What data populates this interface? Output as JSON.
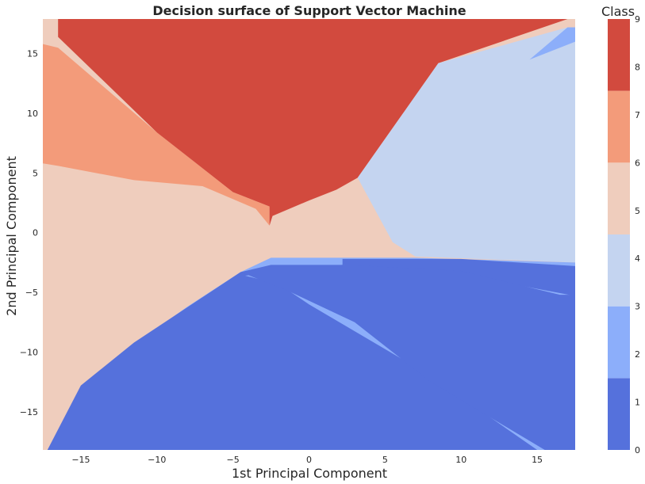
{
  "chart_data": {
    "type": "contour",
    "title": "Decision surface of Support Vector Machine",
    "xlabel": "1st Principal Component",
    "ylabel": "2nd Principal Component",
    "xlim": [
      -17.5,
      17.5
    ],
    "ylim": [
      -18.2,
      17.9
    ],
    "xticks": [
      -15,
      -10,
      -5,
      0,
      5,
      10,
      15
    ],
    "xtick_labels": [
      "−15",
      "−10",
      "−5",
      "0",
      "5",
      "10",
      "15"
    ],
    "yticks": [
      -15,
      -10,
      -5,
      0,
      5,
      10,
      15
    ],
    "ytick_labels": [
      "−15",
      "−10",
      "−5",
      "0",
      "5",
      "10",
      "15"
    ],
    "grid": false,
    "colorbar": {
      "title": "Class",
      "levels": [
        0,
        1,
        2,
        3,
        4,
        5,
        6,
        7,
        8,
        9
      ],
      "band_colors": [
        "#5571dc",
        "#8caefa",
        "#c4d4f0",
        "#efcdbd",
        "#f39b7a",
        "#d24a3e"
      ]
    },
    "regions": [
      {
        "class_band": 3,
        "color": "#efcdbd",
        "polygon": [
          [
            -17.5,
            17.9
          ],
          [
            17.5,
            17.9
          ],
          [
            17.5,
            -18.2
          ],
          [
            -17.5,
            -18.2
          ]
        ]
      },
      {
        "class_band": 4,
        "color": "#f39b7a",
        "polygon": [
          [
            -17.5,
            15.8
          ],
          [
            -16.5,
            15.5
          ],
          [
            -10,
            8.4
          ],
          [
            -5,
            3.4
          ],
          [
            -2.6,
            2.2
          ],
          [
            -2.6,
            0.6
          ],
          [
            -3.5,
            2.0
          ],
          [
            -7,
            3.9
          ],
          [
            -11.5,
            4.4
          ],
          [
            -16.5,
            5.6
          ],
          [
            -17.5,
            5.8
          ]
        ]
      },
      {
        "class_band": 5,
        "color": "#d24a3e",
        "polygon": [
          [
            -16.5,
            17.9
          ],
          [
            17.0,
            17.9
          ],
          [
            8.5,
            14.2
          ],
          [
            3.2,
            4.6
          ],
          [
            1.8,
            3.6
          ],
          [
            0,
            2.7
          ],
          [
            -2.4,
            1.4
          ],
          [
            -2.6,
            0.6
          ],
          [
            -2.6,
            2.2
          ],
          [
            -5,
            3.4
          ],
          [
            -10,
            8.4
          ],
          [
            -16.5,
            16.4
          ]
        ]
      },
      {
        "class_band": 2,
        "color": "#c4d4f0",
        "polygon": [
          [
            17.5,
            16.0
          ],
          [
            17.5,
            -2.5
          ],
          [
            7.0,
            -2.0
          ],
          [
            5.5,
            -0.8
          ],
          [
            3.2,
            4.6
          ],
          [
            8.5,
            14.2
          ],
          [
            17.0,
            17.2
          ]
        ]
      },
      {
        "class_band": 1,
        "color": "#8caefa",
        "polygon": [
          [
            17.5,
            17.2
          ],
          [
            17.5,
            16.0
          ],
          [
            14.5,
            14.5
          ],
          [
            17.0,
            17.2
          ]
        ]
      },
      {
        "class_band": 1,
        "color": "#8caefa",
        "polygon": [
          [
            17.5,
            -2.5
          ],
          [
            7.0,
            -2.1
          ],
          [
            -2.5,
            -2.1
          ],
          [
            -4.5,
            -3.3
          ],
          [
            -8,
            -6.2
          ],
          [
            -12,
            -9.8
          ],
          [
            -17.2,
            -18.2
          ],
          [
            17.5,
            -18.2
          ]
        ]
      },
      {
        "class_band": 0,
        "color": "#5571dc",
        "polygon": [
          [
            17.5,
            -2.8
          ],
          [
            10,
            -2.2
          ],
          [
            2.2,
            -2.2
          ],
          [
            2.2,
            -2.7
          ],
          [
            -4.5,
            -3.3
          ],
          [
            -11.5,
            -9.2
          ],
          [
            -15,
            -12.8
          ],
          [
            -17.2,
            -18.2
          ],
          [
            15,
            -18.2
          ],
          [
            8,
            -12
          ],
          [
            0,
            -6
          ],
          [
            -2,
            -4.3
          ],
          [
            -4.2,
            -3.6
          ],
          [
            2.3,
            -2.7
          ],
          [
            10,
            -3.5
          ],
          [
            17.5,
            -5.3
          ]
        ]
      },
      {
        "class_band": 0,
        "color": "#5571dc",
        "polygon": [
          [
            -4.5,
            -3.3
          ],
          [
            -2.5,
            -2.7
          ],
          [
            2.5,
            -2.7
          ],
          [
            10,
            -3.2
          ],
          [
            16.5,
            -5.2
          ],
          [
            17.5,
            -5.2
          ],
          [
            17.5,
            -18.2
          ],
          [
            15.5,
            -18.2
          ],
          [
            8,
            -12.5
          ],
          [
            3,
            -7.5
          ],
          [
            -1.5,
            -4.8
          ]
        ]
      }
    ]
  }
}
